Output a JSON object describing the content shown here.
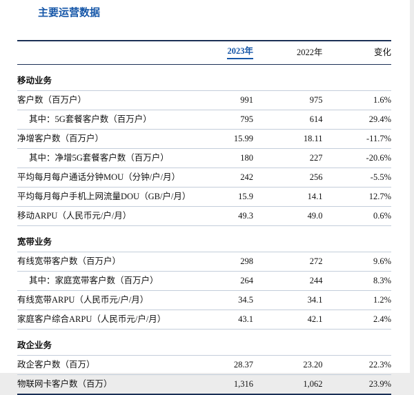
{
  "page": {
    "title": "主要运营数据"
  },
  "colors": {
    "accent_blue": "#1556a8",
    "rule_dark": "#1a2f55",
    "rule_light": "#c3cdda"
  },
  "table": {
    "columns": [
      "2023年",
      "2022年",
      "变化"
    ],
    "rows": [
      {
        "type": "section",
        "label": "移动业务"
      },
      {
        "type": "data",
        "label": "客户数（百万户）",
        "indent": false,
        "values": [
          "991",
          "975",
          "1.6%"
        ]
      },
      {
        "type": "data",
        "label": "其中：5G套餐客户数（百万户）",
        "indent": true,
        "values": [
          "795",
          "614",
          "29.4%"
        ]
      },
      {
        "type": "data",
        "label": "净增客户数（百万户）",
        "indent": false,
        "values": [
          "15.99",
          "18.11",
          "-11.7%"
        ]
      },
      {
        "type": "data",
        "label": "其中：净增5G套餐客户数（百万户）",
        "indent": true,
        "values": [
          "180",
          "227",
          "-20.6%"
        ]
      },
      {
        "type": "data",
        "label": "平均每月每户通话分钟MOU（分钟/户/月）",
        "indent": false,
        "values": [
          "242",
          "256",
          "-5.5%"
        ]
      },
      {
        "type": "data",
        "label": "平均每月每户手机上网流量DOU（GB/户/月）",
        "indent": false,
        "values": [
          "15.9",
          "14.1",
          "12.7%"
        ]
      },
      {
        "type": "data",
        "label": "移动ARPU（人民币元/户/月）",
        "indent": false,
        "values": [
          "49.3",
          "49.0",
          "0.6%"
        ]
      },
      {
        "type": "section",
        "label": "宽带业务"
      },
      {
        "type": "data",
        "label": "有线宽带客户数（百万户）",
        "indent": false,
        "values": [
          "298",
          "272",
          "9.6%"
        ]
      },
      {
        "type": "data",
        "label": "其中：家庭宽带客户数（百万户）",
        "indent": true,
        "values": [
          "264",
          "244",
          "8.3%"
        ]
      },
      {
        "type": "data",
        "label": "有线宽带ARPU（人民币元/户/月）",
        "indent": false,
        "values": [
          "34.5",
          "34.1",
          "1.2%"
        ]
      },
      {
        "type": "data",
        "label": "家庭客户综合ARPU（人民币元/户/月）",
        "indent": false,
        "values": [
          "43.1",
          "42.1",
          "2.4%"
        ]
      },
      {
        "type": "section",
        "label": "政企业务"
      },
      {
        "type": "data",
        "label": "政企客户数（百万）",
        "indent": false,
        "values": [
          "28.37",
          "23.20",
          "22.3%"
        ]
      },
      {
        "type": "data",
        "label": "物联网卡客户数（百万）",
        "indent": false,
        "values": [
          "1,316",
          "1,062",
          "23.9%"
        ]
      }
    ]
  }
}
